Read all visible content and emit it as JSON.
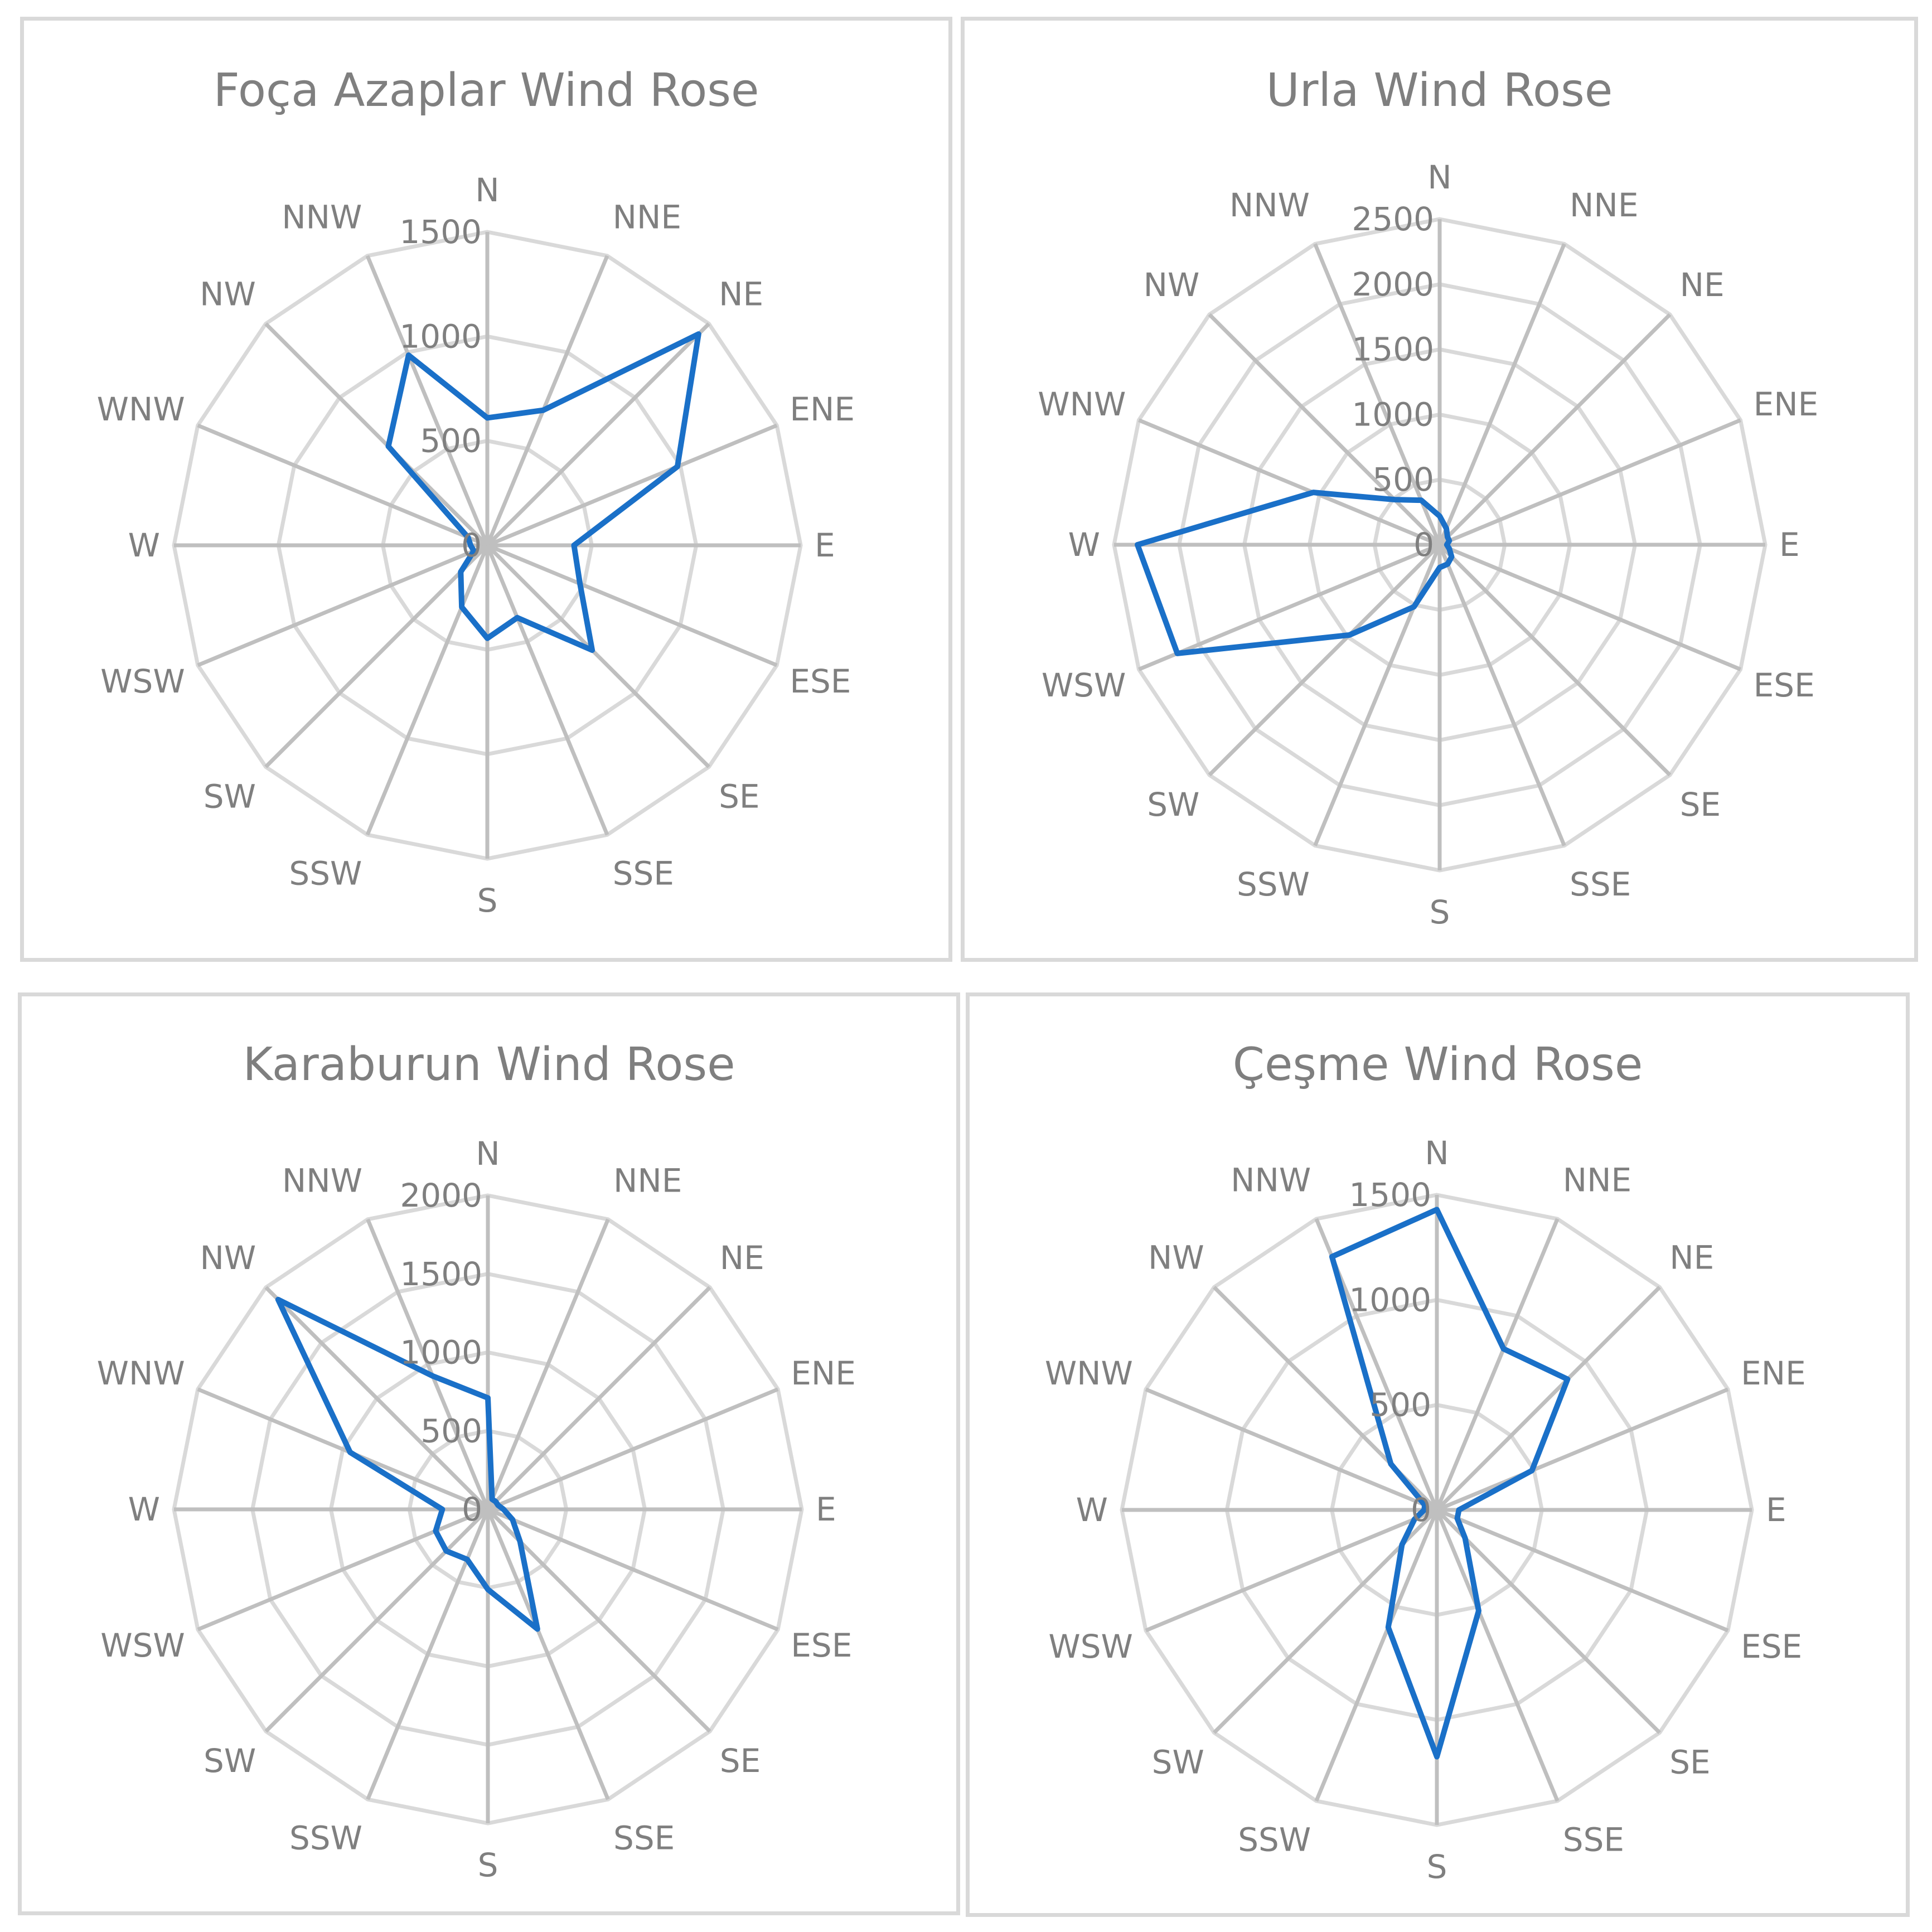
{
  "directions": [
    "N",
    "NNE",
    "NE",
    "ENE",
    "E",
    "ESE",
    "SE",
    "SSE",
    "S",
    "SSW",
    "SW",
    "WSW",
    "W",
    "WNW",
    "NW",
    "NNW"
  ],
  "colors": {
    "series": "#1a70c8",
    "ring": "#d9d9d9",
    "spoke": "#bfbfbf",
    "text": "#7f7f7f",
    "border": "#d9d9d9"
  },
  "charts": {
    "foca": {
      "title": "Foça Azaplar Wind Rose"
    },
    "urla": {
      "title": "Urla Wind Rose"
    },
    "karaburun": {
      "title": "Karaburun Wind Rose"
    },
    "cesme": {
      "title": "Çeşme Wind Rose"
    }
  },
  "chart_data": [
    {
      "type": "radar",
      "title": "Foça Azaplar Wind Rose",
      "categories": [
        "N",
        "NNE",
        "NE",
        "ENE",
        "E",
        "ESE",
        "SE",
        "SSE",
        "S",
        "SSW",
        "SW",
        "WSW",
        "W",
        "WNW",
        "NW",
        "NNW"
      ],
      "series": [
        {
          "name": "Foça Azaplar",
          "values": [
            610,
            700,
            1430,
            985,
            415,
            480,
            710,
            375,
            445,
            320,
            180,
            70,
            80,
            100,
            670,
            985
          ]
        }
      ],
      "radial_ticks": [
        0,
        500,
        1000,
        1500
      ],
      "rlim": [
        0,
        1500
      ],
      "grid": true,
      "legend": "none"
    },
    {
      "type": "radar",
      "title": "Urla Wind Rose",
      "categories": [
        "N",
        "NNE",
        "NE",
        "ENE",
        "E",
        "ESE",
        "SE",
        "SSE",
        "S",
        "SSW",
        "SW",
        "WSW",
        "W",
        "WNW",
        "NW",
        "NNW"
      ],
      "series": [
        {
          "name": "Urla",
          "values": [
            220,
            135,
            85,
            80,
            55,
            80,
            130,
            160,
            175,
            515,
            980,
            2180,
            2320,
            1050,
            490,
            370
          ]
        }
      ],
      "radial_ticks": [
        0,
        500,
        1000,
        1500,
        2000,
        2500
      ],
      "rlim": [
        0,
        2500
      ],
      "grid": true,
      "legend": "none"
    },
    {
      "type": "radar",
      "title": "Karaburun Wind Rose",
      "categories": [
        "N",
        "NNE",
        "NE",
        "ENE",
        "E",
        "ESE",
        "SE",
        "SSE",
        "S",
        "SSW",
        "SW",
        "WSW",
        "W",
        "WNW",
        "NW",
        "NNW"
      ],
      "series": [
        {
          "name": "Karaburun",
          "values": [
            710,
            70,
            70,
            70,
            100,
            170,
            290,
            825,
            510,
            345,
            375,
            360,
            290,
            950,
            1890,
            920
          ]
        }
      ],
      "radial_ticks": [
        0,
        500,
        1000,
        1500,
        2000
      ],
      "rlim": [
        0,
        2000
      ],
      "grid": true,
      "legend": "none"
    },
    {
      "type": "radar",
      "title": "Çeşme Wind Rose",
      "categories": [
        "N",
        "NNE",
        "NE",
        "ENE",
        "E",
        "ESE",
        "SE",
        "SSE",
        "S",
        "SSW",
        "SW",
        "WSW",
        "W",
        "WNW",
        "NW",
        "NNW"
      ],
      "series": [
        {
          "name": "Çeşme",
          "values": [
            1430,
            830,
            880,
            490,
            105,
            105,
            190,
            520,
            1175,
            605,
            235,
            115,
            60,
            63,
            310,
            1305
          ]
        }
      ],
      "radial_ticks": [
        0,
        500,
        1000,
        1500
      ],
      "rlim": [
        0,
        1500
      ],
      "grid": true,
      "legend": "none"
    }
  ]
}
